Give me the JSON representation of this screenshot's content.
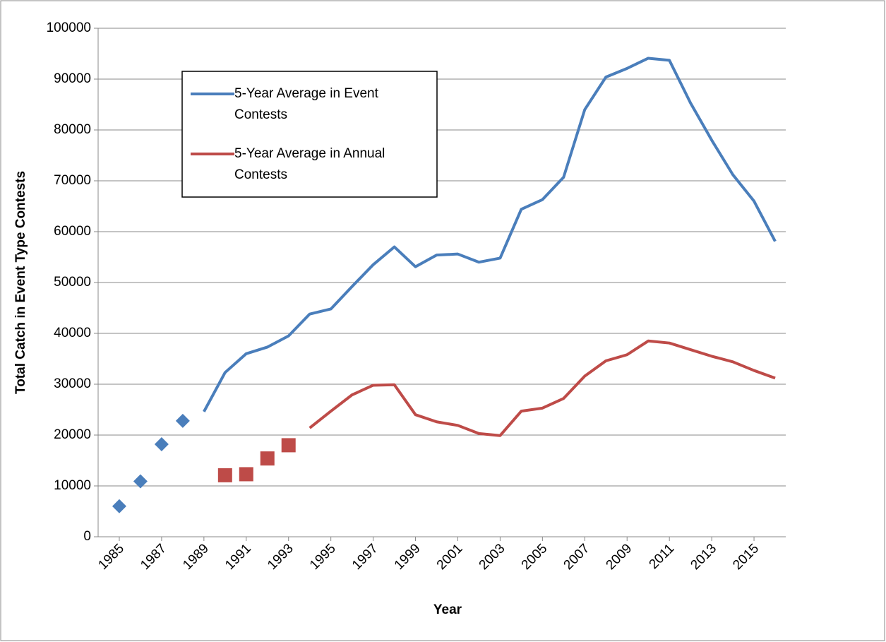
{
  "chart_data": {
    "type": "line",
    "y_label": "Total Catch in Event Type Contests",
    "x_label": "Year",
    "x": [
      1985,
      1986,
      1987,
      1988,
      1989,
      1990,
      1991,
      1992,
      1993,
      1994,
      1995,
      1996,
      1997,
      1998,
      1999,
      2000,
      2001,
      2002,
      2003,
      2004,
      2005,
      2006,
      2007,
      2008,
      2009,
      2010,
      2011,
      2012,
      2013,
      2014,
      2015,
      2016
    ],
    "series": [
      {
        "name": "5-Year Average in Event Contests",
        "color": "#4a7ebb",
        "style": "line",
        "values": [
          null,
          null,
          null,
          null,
          24600,
          32300,
          36000,
          37300,
          39500,
          43800,
          44800,
          49200,
          53500,
          57000,
          53100,
          55400,
          55600,
          54000,
          54800,
          64400,
          66300,
          70700,
          84000,
          90400,
          92100,
          94100,
          93700,
          85300,
          78000,
          71200,
          66000,
          58100
        ]
      },
      {
        "name": "5-Year Average in Annual Contests",
        "color": "#be4b48",
        "style": "line",
        "values": [
          null,
          null,
          null,
          null,
          null,
          null,
          null,
          null,
          null,
          21400,
          24700,
          27900,
          29800,
          29900,
          24000,
          22600,
          21900,
          20300,
          19900,
          24700,
          25300,
          27200,
          31600,
          34600,
          35800,
          38500,
          38100,
          36800,
          35500,
          34400,
          32700,
          31200
        ]
      },
      {
        "color": "#4a7ebb",
        "style": "diamond",
        "values": [
          6000,
          10900,
          18200,
          22800,
          null,
          null,
          null,
          null,
          null,
          null,
          null,
          null,
          null,
          null,
          null,
          null,
          null,
          null,
          null,
          null,
          null,
          null,
          null,
          null,
          null,
          null,
          null,
          null,
          null,
          null,
          null,
          null
        ]
      },
      {
        "color": "#be4b48",
        "style": "square",
        "values": [
          null,
          null,
          null,
          null,
          null,
          12100,
          12300,
          15400,
          18000,
          null,
          null,
          null,
          null,
          null,
          null,
          null,
          null,
          null,
          null,
          null,
          null,
          null,
          null,
          null,
          null,
          null,
          null,
          null,
          null,
          null,
          null,
          null
        ]
      }
    ],
    "xlim": [
      1984,
      2016.5
    ],
    "xticks": [
      1985,
      1987,
      1989,
      1991,
      1993,
      1995,
      1997,
      1999,
      2001,
      2003,
      2005,
      2007,
      2009,
      2011,
      2013,
      2015
    ],
    "ylim": [
      0,
      100000
    ],
    "yticks": [
      0,
      10000,
      20000,
      30000,
      40000,
      50000,
      60000,
      70000,
      80000,
      90000,
      100000
    ],
    "grid": true
  }
}
